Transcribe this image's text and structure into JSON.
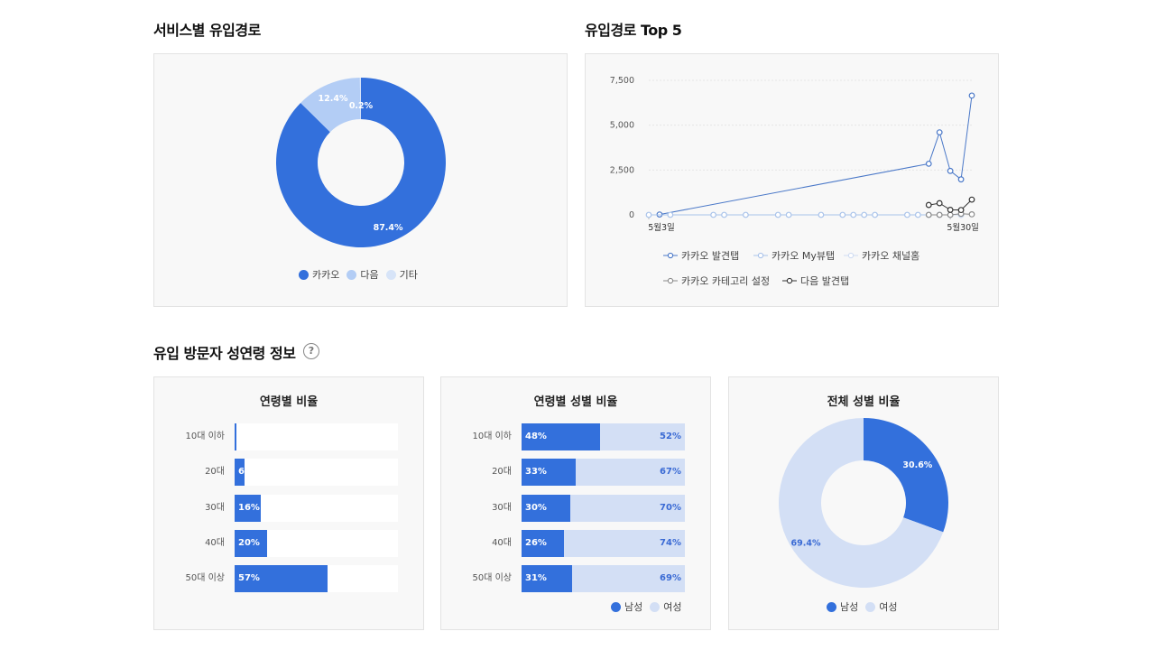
{
  "sections": {
    "service_inflow": "서비스별 유입경로",
    "top5": "유입경로 Top 5",
    "demographics": "유입 방문자 성연령 정보",
    "help_icon": "?"
  },
  "panels": {
    "age_ratio": "연령별 비율",
    "age_gender_ratio": "연령별 성별 비율",
    "gender_ratio": "전체 성별 비율"
  },
  "colors": {
    "primary": "#3370dc",
    "light": "#b3cdf5",
    "lighter": "#d3dff5"
  },
  "chart_data": [
    {
      "id": "service_donut",
      "type": "pie",
      "donut": true,
      "labels": [
        "카카오",
        "다음",
        "기타"
      ],
      "values": [
        87.4,
        12.4,
        0.2
      ],
      "value_labels": [
        "87.4%",
        "12.4%",
        "0.2%"
      ],
      "colors": [
        "#3370dc",
        "#b3cdf5",
        "#d7e4f8"
      ],
      "legend_position": "bottom"
    },
    {
      "id": "top5_line",
      "type": "line",
      "ylim": [
        0,
        7500
      ],
      "yticks": [
        "0",
        "2,500",
        "5,000",
        "7,500"
      ],
      "ytick_values": [
        0,
        2500,
        5000,
        7500
      ],
      "xtick_labels": [
        "5월3일",
        "5월30일"
      ],
      "xtick_index": [
        0,
        29
      ],
      "xlim": [
        0,
        29
      ],
      "grid": true,
      "legend_position": "bottom",
      "series": [
        {
          "name": "카카오 발견탭",
          "color": "#4a78c8",
          "points": [
            [
              1,
              20
            ],
            [
              26,
              2850
            ],
            [
              27,
              4600
            ],
            [
              28,
              2450
            ],
            [
              29,
              1980
            ],
            [
              30,
              6650
            ]
          ]
        },
        {
          "name": "카카오 My뷰탭",
          "color": "#a9c3ea",
          "points": [
            [
              0,
              0
            ],
            [
              2,
              0
            ],
            [
              6,
              0
            ],
            [
              7,
              0
            ],
            [
              9,
              0
            ],
            [
              12,
              0
            ],
            [
              13,
              0
            ],
            [
              16,
              0
            ],
            [
              18,
              0
            ],
            [
              19,
              0
            ],
            [
              20,
              0
            ],
            [
              21,
              0
            ],
            [
              24,
              0
            ],
            [
              25,
              0
            ],
            [
              26,
              0
            ],
            [
              27,
              0
            ],
            [
              28,
              0
            ],
            [
              29,
              0
            ]
          ]
        },
        {
          "name": "카카오 채널홈",
          "color": "#cfdcf2",
          "points": [
            [
              26,
              0
            ],
            [
              27,
              0
            ],
            [
              28,
              0
            ],
            [
              29,
              0
            ]
          ]
        },
        {
          "name": "카카오 카테고리 설정",
          "color": "#8a8a8a",
          "points": [
            [
              26,
              0
            ],
            [
              27,
              0
            ],
            [
              28,
              0
            ],
            [
              29,
              60
            ],
            [
              30,
              30
            ]
          ]
        },
        {
          "name": "다음 발견탭",
          "color": "#333333",
          "points": [
            [
              26,
              550
            ],
            [
              27,
              650
            ],
            [
              28,
              280
            ],
            [
              29,
              270
            ],
            [
              30,
              850
            ]
          ]
        }
      ]
    },
    {
      "id": "age_bar",
      "type": "bar",
      "orientation": "horizontal",
      "categories": [
        "10대 이하",
        "20대",
        "30대",
        "40대",
        "50대 이상"
      ],
      "values": [
        1,
        6,
        16,
        20,
        57
      ],
      "value_labels": [
        "",
        "6",
        "16%",
        "20%",
        "57%"
      ],
      "xlim": [
        0,
        100
      ]
    },
    {
      "id": "age_gender_bar",
      "type": "bar",
      "orientation": "horizontal",
      "stacked": true,
      "categories": [
        "10대 이하",
        "20대",
        "30대",
        "40대",
        "50대 이상"
      ],
      "series": [
        {
          "name": "남성",
          "values": [
            48,
            33,
            30,
            26,
            31
          ],
          "labels": [
            "48%",
            "33%",
            "30%",
            "26%",
            "31%"
          ]
        },
        {
          "name": "여성",
          "values": [
            52,
            67,
            70,
            74,
            69
          ],
          "labels": [
            "52%",
            "67%",
            "70%",
            "74%",
            "69%"
          ]
        }
      ],
      "legend": [
        "남성",
        "여성"
      ],
      "legend_position": "bottom-right"
    },
    {
      "id": "gender_donut",
      "type": "pie",
      "donut": true,
      "labels": [
        "남성",
        "여성"
      ],
      "values": [
        30.6,
        69.4
      ],
      "value_labels": [
        "30.6%",
        "69.4%"
      ],
      "colors": [
        "#3370dc",
        "#d3dff5"
      ],
      "legend_position": "bottom"
    }
  ]
}
